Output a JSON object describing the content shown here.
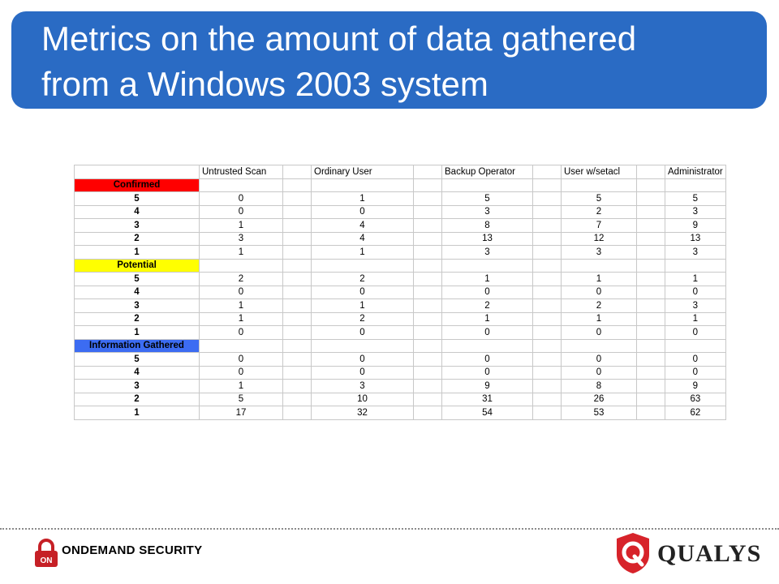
{
  "title": {
    "line1": "Metrics on the amount of data gathered",
    "line2": "from a Windows 2003 system"
  },
  "table": {
    "columns": [
      "Untrusted Scan",
      "Ordinary User",
      "Backup Operator",
      "User w/setacl",
      "Administrator"
    ],
    "sections": [
      {
        "name": "Confirmed",
        "color": "#ff0000",
        "rows": [
          {
            "level": "5",
            "values": [
              "0",
              "1",
              "5",
              "5",
              "5"
            ]
          },
          {
            "level": "4",
            "values": [
              "0",
              "0",
              "3",
              "2",
              "3"
            ]
          },
          {
            "level": "3",
            "values": [
              "1",
              "4",
              "8",
              "7",
              "9"
            ]
          },
          {
            "level": "2",
            "values": [
              "3",
              "4",
              "13",
              "12",
              "13"
            ]
          },
          {
            "level": "1",
            "values": [
              "1",
              "1",
              "3",
              "3",
              "3"
            ]
          }
        ]
      },
      {
        "name": "Potential",
        "color": "#ffff00",
        "rows": [
          {
            "level": "5",
            "values": [
              "2",
              "2",
              "1",
              "1",
              "1"
            ]
          },
          {
            "level": "4",
            "values": [
              "0",
              "0",
              "0",
              "0",
              "0"
            ]
          },
          {
            "level": "3",
            "values": [
              "1",
              "1",
              "2",
              "2",
              "3"
            ]
          },
          {
            "level": "2",
            "values": [
              "1",
              "2",
              "1",
              "1",
              "1"
            ]
          },
          {
            "level": "1",
            "values": [
              "0",
              "0",
              "0",
              "0",
              "0"
            ]
          }
        ]
      },
      {
        "name": "Information Gathered",
        "color": "#3c6cf2",
        "rows": [
          {
            "level": "5",
            "values": [
              "0",
              "0",
              "0",
              "0",
              "0"
            ]
          },
          {
            "level": "4",
            "values": [
              "0",
              "0",
              "0",
              "0",
              "0"
            ]
          },
          {
            "level": "3",
            "values": [
              "1",
              "3",
              "9",
              "8",
              "9"
            ]
          },
          {
            "level": "2",
            "values": [
              "5",
              "10",
              "31",
              "26",
              "63"
            ]
          },
          {
            "level": "1",
            "values": [
              "17",
              "32",
              "54",
              "53",
              "62"
            ]
          }
        ]
      }
    ]
  },
  "footer": {
    "left_logo_text": "ONDEMAND SECURITY",
    "right_logo_text": "QUALYS",
    "left_logo_icon": "lock-icon",
    "right_logo_icon": "q-shield-icon",
    "brand_blue": "#2a6bc4"
  }
}
